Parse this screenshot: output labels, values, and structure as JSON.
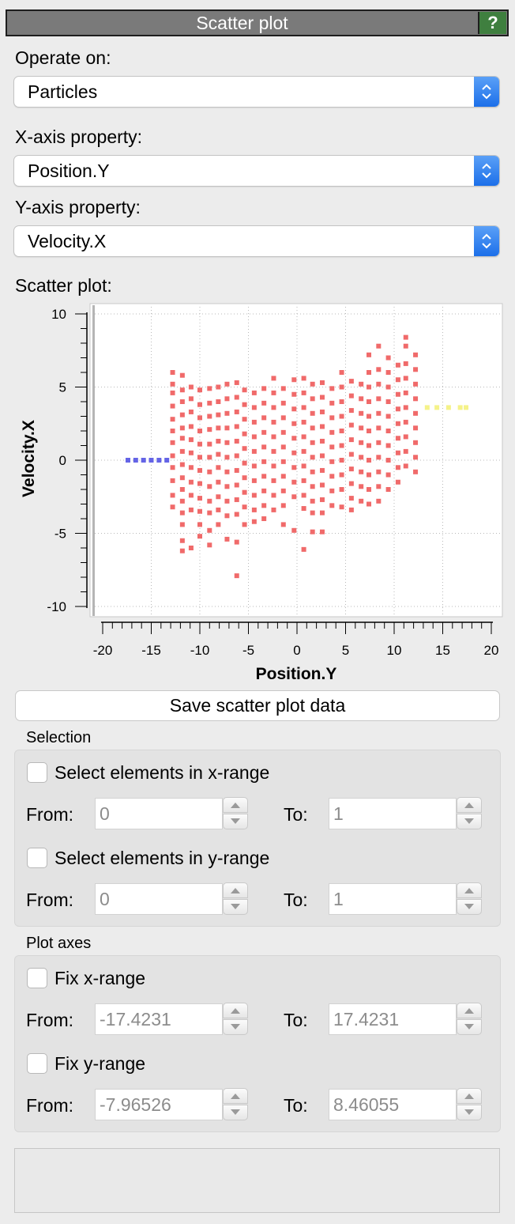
{
  "header": {
    "title": "Scatter plot",
    "help_label": "?"
  },
  "operate_on": {
    "label": "Operate on:",
    "value": "Particles"
  },
  "x_axis_property": {
    "label": "X-axis property:",
    "value": "Position.Y"
  },
  "y_axis_property": {
    "label": "Y-axis property:",
    "value": "Velocity.X"
  },
  "plot_label": "Scatter plot:",
  "chart_data": {
    "type": "scatter",
    "xlabel": "Position.Y",
    "ylabel": "Velocity.X",
    "xlim": [
      -20,
      20
    ],
    "ylim": [
      -10,
      10
    ],
    "xticks": [
      "-20",
      "-15",
      "-10",
      "-5",
      "0",
      "5",
      "10",
      "15",
      "20"
    ],
    "yticks": [
      "10",
      "5",
      "0",
      "-5",
      "-10"
    ],
    "grid": true,
    "colors": {
      "main": "#f06a6a",
      "low": "#6464e6",
      "high": "#f5f28a"
    },
    "series": [
      {
        "color": "main",
        "points": [
          [
            -12.8,
            6
          ],
          [
            -12.8,
            5.2
          ],
          [
            -12.8,
            4.6
          ],
          [
            -12.8,
            3.7
          ],
          [
            -12.8,
            2.8
          ],
          [
            -12.8,
            2
          ],
          [
            -12.8,
            1.2
          ],
          [
            -12.8,
            0.3
          ],
          [
            -12.8,
            -0.5
          ],
          [
            -12.8,
            -1.4
          ],
          [
            -12.8,
            -2.4
          ],
          [
            -12.8,
            -3.2
          ],
          [
            -11.8,
            5.8
          ],
          [
            -11.8,
            4.8
          ],
          [
            -11.8,
            4
          ],
          [
            -11.8,
            3.1
          ],
          [
            -11.8,
            2.2
          ],
          [
            -11.8,
            1.5
          ],
          [
            -11.8,
            0.6
          ],
          [
            -11.8,
            -0.3
          ],
          [
            -11.8,
            -1.2
          ],
          [
            -11.8,
            -2
          ],
          [
            -11.8,
            -2.8
          ],
          [
            -11.8,
            -3.6
          ],
          [
            -11.8,
            -4.4
          ],
          [
            -11.8,
            -5.5
          ],
          [
            -11.8,
            -6.2
          ],
          [
            -10.9,
            5
          ],
          [
            -10.9,
            4.2
          ],
          [
            -10.9,
            3.3
          ],
          [
            -10.9,
            2.3
          ],
          [
            -10.9,
            1.4
          ],
          [
            -10.9,
            0.5
          ],
          [
            -10.9,
            -0.5
          ],
          [
            -10.9,
            -1.5
          ],
          [
            -10.9,
            -2.4
          ],
          [
            -10.9,
            -3.4
          ],
          [
            -10.9,
            -6
          ],
          [
            -10,
            4.8
          ],
          [
            -10,
            3.8
          ],
          [
            -10,
            2.9
          ],
          [
            -10,
            2
          ],
          [
            -10,
            1.1
          ],
          [
            -10,
            0.2
          ],
          [
            -10,
            -0.7
          ],
          [
            -10,
            -1.6
          ],
          [
            -10,
            -2.6
          ],
          [
            -10,
            -3.5
          ],
          [
            -10,
            -4.4
          ],
          [
            -10,
            -5.2
          ],
          [
            -9,
            4.9
          ],
          [
            -9,
            3.9
          ],
          [
            -9,
            3
          ],
          [
            -9,
            2.1
          ],
          [
            -9,
            1.1
          ],
          [
            -9,
            0.2
          ],
          [
            -9,
            -0.8
          ],
          [
            -9,
            -1.8
          ],
          [
            -9,
            -2.8
          ],
          [
            -9,
            -3.6
          ],
          [
            -9,
            -4.8
          ],
          [
            -9,
            -5.8
          ],
          [
            -8.1,
            5
          ],
          [
            -8.1,
            4
          ],
          [
            -8.1,
            3.1
          ],
          [
            -8.1,
            2.2
          ],
          [
            -8.1,
            1.3
          ],
          [
            -8.1,
            0.4
          ],
          [
            -8.1,
            -0.5
          ],
          [
            -8.1,
            -1.5
          ],
          [
            -8.1,
            -2.5
          ],
          [
            -8.1,
            -3.4
          ],
          [
            -8.1,
            -4.4
          ],
          [
            -7.2,
            5.2
          ],
          [
            -7.2,
            4.2
          ],
          [
            -7.2,
            3.2
          ],
          [
            -7.2,
            2.2
          ],
          [
            -7.2,
            1.2
          ],
          [
            -7.2,
            0.2
          ],
          [
            -7.2,
            -0.8
          ],
          [
            -7.2,
            -1.8
          ],
          [
            -7.2,
            -2.8
          ],
          [
            -7.2,
            -3.8
          ],
          [
            -7.2,
            -5.4
          ],
          [
            -6.2,
            5.3
          ],
          [
            -6.2,
            4.3
          ],
          [
            -6.2,
            3.3
          ],
          [
            -6.2,
            2.3
          ],
          [
            -6.2,
            1.3
          ],
          [
            -6.2,
            0.3
          ],
          [
            -6.2,
            -0.7
          ],
          [
            -6.2,
            -1.7
          ],
          [
            -6.2,
            -2.7
          ],
          [
            -6.2,
            -3.7
          ],
          [
            -6.2,
            -5.6
          ],
          [
            -6.2,
            -7.9
          ],
          [
            -5.4,
            4.8
          ],
          [
            -5.4,
            3.8
          ],
          [
            -5.4,
            2.8
          ],
          [
            -5.4,
            1.8
          ],
          [
            -5.4,
            0.8
          ],
          [
            -5.4,
            -0.2
          ],
          [
            -5.4,
            -1.2
          ],
          [
            -5.4,
            -2.2
          ],
          [
            -5.4,
            -3.2
          ],
          [
            -5.4,
            -4.4
          ],
          [
            -4.4,
            4.6
          ],
          [
            -4.4,
            3.6
          ],
          [
            -4.4,
            2.6
          ],
          [
            -4.4,
            1.6
          ],
          [
            -4.4,
            0.6
          ],
          [
            -4.4,
            -0.4
          ],
          [
            -4.4,
            -1.4
          ],
          [
            -4.4,
            -2.4
          ],
          [
            -4.4,
            -3.4
          ],
          [
            -4.4,
            -4.2
          ],
          [
            -3.4,
            4.9
          ],
          [
            -3.4,
            3.9
          ],
          [
            -3.4,
            2.9
          ],
          [
            -3.4,
            1.9
          ],
          [
            -3.4,
            0.9
          ],
          [
            -3.4,
            -0.1
          ],
          [
            -3.4,
            -1.1
          ],
          [
            -3.4,
            -2.1
          ],
          [
            -3.4,
            -3.1
          ],
          [
            -3.4,
            -4
          ],
          [
            -2.4,
            5.6
          ],
          [
            -2.4,
            4.6
          ],
          [
            -2.4,
            3.6
          ],
          [
            -2.4,
            2.6
          ],
          [
            -2.4,
            1.6
          ],
          [
            -2.4,
            0.6
          ],
          [
            -2.4,
            -0.4
          ],
          [
            -2.4,
            -1.4
          ],
          [
            -2.4,
            -2.4
          ],
          [
            -2.4,
            -3.4
          ],
          [
            -1.4,
            4.9
          ],
          [
            -1.4,
            3.9
          ],
          [
            -1.4,
            2.9
          ],
          [
            -1.4,
            1.9
          ],
          [
            -1.4,
            0.9
          ],
          [
            -1.4,
            -0.1
          ],
          [
            -1.4,
            -1.1
          ],
          [
            -1.4,
            -2.1
          ],
          [
            -1.4,
            -3.1
          ],
          [
            -1.4,
            -4.4
          ],
          [
            -0.3,
            5.5
          ],
          [
            -0.3,
            4.5
          ],
          [
            -0.3,
            3.5
          ],
          [
            -0.3,
            2.5
          ],
          [
            -0.3,
            1.5
          ],
          [
            -0.3,
            0.5
          ],
          [
            -0.3,
            -0.5
          ],
          [
            -0.3,
            -1.5
          ],
          [
            -0.3,
            -2.5
          ],
          [
            -0.3,
            -4.8
          ],
          [
            0.7,
            5.6
          ],
          [
            0.7,
            4.6
          ],
          [
            0.7,
            3.6
          ],
          [
            0.7,
            2.6
          ],
          [
            0.7,
            1.6
          ],
          [
            0.7,
            0.6
          ],
          [
            0.7,
            -0.4
          ],
          [
            0.7,
            -1.4
          ],
          [
            0.7,
            -2.4
          ],
          [
            0.7,
            -3.3
          ],
          [
            0.7,
            -6.1
          ],
          [
            1.6,
            5.2
          ],
          [
            1.6,
            4.2
          ],
          [
            1.6,
            3.2
          ],
          [
            1.6,
            2.2
          ],
          [
            1.6,
            1.2
          ],
          [
            1.6,
            0.2
          ],
          [
            1.6,
            -0.8
          ],
          [
            1.6,
            -1.8
          ],
          [
            1.6,
            -2.8
          ],
          [
            1.6,
            -3.6
          ],
          [
            1.6,
            -4.9
          ],
          [
            2.6,
            5.3
          ],
          [
            2.6,
            4.3
          ],
          [
            2.6,
            3.3
          ],
          [
            2.6,
            2.3
          ],
          [
            2.6,
            1.3
          ],
          [
            2.6,
            0.3
          ],
          [
            2.6,
            -0.7
          ],
          [
            2.6,
            -1.7
          ],
          [
            2.6,
            -2.7
          ],
          [
            2.6,
            -3.6
          ],
          [
            2.6,
            -4.9
          ],
          [
            3.6,
            4.9
          ],
          [
            3.6,
            3.9
          ],
          [
            3.6,
            2.9
          ],
          [
            3.6,
            1.9
          ],
          [
            3.6,
            0.9
          ],
          [
            3.6,
            -0.1
          ],
          [
            3.6,
            -1.1
          ],
          [
            3.6,
            -2.1
          ],
          [
            3.6,
            -3.1
          ],
          [
            4.6,
            6
          ],
          [
            4.6,
            5
          ],
          [
            4.6,
            4
          ],
          [
            4.6,
            3
          ],
          [
            4.6,
            2
          ],
          [
            4.6,
            1
          ],
          [
            4.6,
            0
          ],
          [
            4.6,
            -1
          ],
          [
            4.6,
            -2
          ],
          [
            4.6,
            -3.2
          ],
          [
            5.6,
            5.4
          ],
          [
            5.6,
            4.4
          ],
          [
            5.6,
            3.4
          ],
          [
            5.6,
            2.4
          ],
          [
            5.6,
            1.4
          ],
          [
            5.6,
            0.4
          ],
          [
            5.6,
            -0.6
          ],
          [
            5.6,
            -1.6
          ],
          [
            5.6,
            -2.6
          ],
          [
            5.6,
            -3.4
          ],
          [
            6.6,
            5.2
          ],
          [
            6.6,
            4.2
          ],
          [
            6.6,
            3.2
          ],
          [
            6.6,
            2.2
          ],
          [
            6.6,
            1.2
          ],
          [
            6.6,
            0.2
          ],
          [
            6.6,
            -0.8
          ],
          [
            6.6,
            -1.8
          ],
          [
            6.6,
            -2.8
          ],
          [
            7.4,
            7.2
          ],
          [
            7.4,
            6
          ],
          [
            7.4,
            5
          ],
          [
            7.4,
            4
          ],
          [
            7.4,
            3
          ],
          [
            7.4,
            2
          ],
          [
            7.4,
            1
          ],
          [
            7.4,
            0
          ],
          [
            7.4,
            -1
          ],
          [
            7.4,
            -2
          ],
          [
            7.4,
            -3
          ],
          [
            8.4,
            7.8
          ],
          [
            8.4,
            6.2
          ],
          [
            8.4,
            5.2
          ],
          [
            8.4,
            4.2
          ],
          [
            8.4,
            3.2
          ],
          [
            8.4,
            2.2
          ],
          [
            8.4,
            1.2
          ],
          [
            8.4,
            0.2
          ],
          [
            8.4,
            -0.8
          ],
          [
            8.4,
            -1.8
          ],
          [
            8.4,
            -2.8
          ],
          [
            9.4,
            7
          ],
          [
            9.4,
            6
          ],
          [
            9.4,
            5
          ],
          [
            9.4,
            4
          ],
          [
            9.4,
            3
          ],
          [
            9.4,
            2
          ],
          [
            9.4,
            1
          ],
          [
            9.4,
            0
          ],
          [
            9.4,
            -1
          ],
          [
            9.4,
            -2
          ],
          [
            10.4,
            6.5
          ],
          [
            10.4,
            5.5
          ],
          [
            10.4,
            4.5
          ],
          [
            10.4,
            3.5
          ],
          [
            10.4,
            2.5
          ],
          [
            10.4,
            1.5
          ],
          [
            10.4,
            0.5
          ],
          [
            10.4,
            -0.5
          ],
          [
            10.4,
            -1.5
          ],
          [
            11.2,
            8.4
          ],
          [
            11.2,
            7.8
          ],
          [
            11.2,
            6.6
          ],
          [
            11.2,
            5.6
          ],
          [
            11.2,
            4.6
          ],
          [
            11.2,
            3.6
          ],
          [
            11.2,
            2.6
          ],
          [
            11.2,
            1.6
          ],
          [
            11.2,
            0.6
          ],
          [
            11.2,
            -0.4
          ],
          [
            12.2,
            7.2
          ],
          [
            12.2,
            6.2
          ],
          [
            12.2,
            5.2
          ],
          [
            12.2,
            4.2
          ],
          [
            12.2,
            3.2
          ],
          [
            12.2,
            2.2
          ],
          [
            12.2,
            1.2
          ],
          [
            12.2,
            0.2
          ],
          [
            12.2,
            -0.8
          ]
        ]
      },
      {
        "color": "low",
        "points": [
          [
            -17.4,
            0
          ],
          [
            -16.6,
            0
          ],
          [
            -15.8,
            0
          ],
          [
            -15,
            0
          ],
          [
            -14.2,
            0
          ],
          [
            -13.4,
            0
          ]
        ]
      },
      {
        "color": "high",
        "points": [
          [
            13.4,
            3.6
          ],
          [
            14.4,
            3.6
          ],
          [
            15.6,
            3.6
          ],
          [
            16.8,
            3.6
          ],
          [
            17.4,
            3.6
          ]
        ]
      }
    ]
  },
  "save_button": "Save scatter plot data",
  "selection": {
    "title": "Selection",
    "x_range": {
      "label": "Select elements in x-range",
      "from_label": "From:",
      "from_value": "0",
      "to_label": "To:",
      "to_value": "1"
    },
    "y_range": {
      "label": "Select elements in y-range",
      "from_label": "From:",
      "from_value": "0",
      "to_label": "To:",
      "to_value": "1"
    }
  },
  "plot_axes": {
    "title": "Plot axes",
    "x_range": {
      "label": "Fix x-range",
      "from_label": "From:",
      "from_value": "-17.4231",
      "to_label": "To:",
      "to_value": "17.4231"
    },
    "y_range": {
      "label": "Fix y-range",
      "from_label": "From:",
      "from_value": "-7.96526",
      "to_label": "To:",
      "to_value": "8.46055"
    }
  }
}
